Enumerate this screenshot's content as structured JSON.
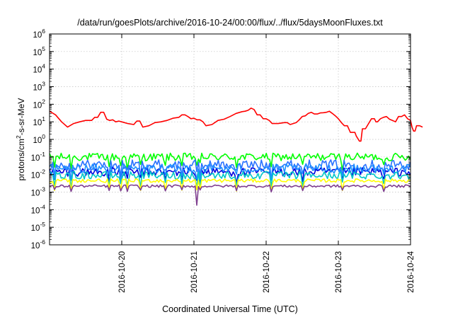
{
  "chart_data": {
    "type": "line",
    "title": "/data/run/goesPlots/archive/2016-10-24/00:00/flux/../flux/5daysMoonFluxes.txt",
    "xlabel": "Coordinated Universal Time (UTC)",
    "ylabel": "protons/cm²-s-sr-MeV",
    "ylabel_parts": {
      "pre": "protons/cm",
      "sup": "2",
      "post": "-s-sr-MeV"
    },
    "yscale": "log",
    "ylim": [
      1e-06,
      1000000
    ],
    "y_tick_exponents": [
      -6,
      -5,
      -4,
      -3,
      -2,
      -1,
      0,
      1,
      2,
      3,
      4,
      5,
      6
    ],
    "x_range": [
      "2016-10-19T00:00",
      "2016-10-24T00:00"
    ],
    "x_ticks": [
      "2016-10-20",
      "2016-10-21",
      "2016-10-22",
      "2016-10-23",
      "2016-10-24"
    ],
    "grid": true,
    "series": [
      {
        "color": "#ff0000",
        "values": [
          [
            0,
            40
          ],
          [
            4,
            25
          ],
          [
            8,
            10
          ],
          [
            12,
            5
          ],
          [
            16,
            8
          ],
          [
            20,
            10
          ],
          [
            24,
            12
          ],
          [
            28,
            12
          ],
          [
            30,
            18
          ],
          [
            32,
            18
          ],
          [
            34,
            35
          ],
          [
            36,
            35
          ],
          [
            38,
            14
          ],
          [
            40,
            12
          ],
          [
            42,
            13
          ],
          [
            44,
            10
          ],
          [
            46,
            11
          ],
          [
            48,
            10
          ],
          [
            52,
            8
          ],
          [
            56,
            7
          ],
          [
            58,
            11
          ],
          [
            60,
            11
          ],
          [
            62,
            5
          ],
          [
            66,
            6
          ],
          [
            70,
            9
          ],
          [
            74,
            10
          ],
          [
            78,
            12
          ],
          [
            82,
            16
          ],
          [
            86,
            18
          ],
          [
            88,
            25
          ],
          [
            90,
            25
          ],
          [
            92,
            20
          ],
          [
            94,
            15
          ],
          [
            96,
            16
          ],
          [
            98,
            13
          ],
          [
            100,
            13
          ],
          [
            102,
            10
          ],
          [
            104,
            6
          ],
          [
            108,
            7
          ],
          [
            112,
            12
          ],
          [
            116,
            14
          ],
          [
            120,
            20
          ],
          [
            124,
            30
          ],
          [
            128,
            38
          ],
          [
            130,
            40
          ],
          [
            132,
            45
          ],
          [
            134,
            60
          ],
          [
            136,
            50
          ],
          [
            138,
            25
          ],
          [
            140,
            25
          ],
          [
            142,
            15
          ],
          [
            144,
            15
          ],
          [
            146,
            12
          ],
          [
            148,
            8
          ],
          [
            152,
            8
          ],
          [
            156,
            9
          ],
          [
            158,
            9
          ],
          [
            160,
            7
          ],
          [
            164,
            9
          ],
          [
            166,
            13
          ],
          [
            168,
            20
          ],
          [
            170,
            22
          ],
          [
            172,
            30
          ],
          [
            174,
            35
          ],
          [
            176,
            28
          ],
          [
            178,
            28
          ],
          [
            180,
            32
          ],
          [
            182,
            33
          ],
          [
            184,
            35
          ],
          [
            186,
            40
          ],
          [
            188,
            30
          ],
          [
            190,
            22
          ],
          [
            192,
            15
          ],
          [
            194,
            9
          ],
          [
            196,
            6
          ],
          [
            198,
            6
          ],
          [
            200,
            2.5
          ],
          [
            203,
            2.5
          ],
          [
            204,
            1.5
          ],
          [
            206,
            0.8
          ],
          [
            207,
            0.8
          ],
          [
            208,
            4
          ],
          [
            210,
            4
          ],
          [
            214,
            15
          ],
          [
            216,
            15
          ],
          [
            217,
            10
          ],
          [
            218,
            10
          ],
          [
            220,
            15
          ],
          [
            222,
            18
          ],
          [
            224,
            20
          ],
          [
            226,
            14
          ],
          [
            228,
            12
          ],
          [
            230,
            10
          ],
          [
            232,
            20
          ],
          [
            234,
            20
          ],
          [
            236,
            25
          ],
          [
            238,
            15
          ],
          [
            240,
            12
          ],
          [
            241,
            5
          ],
          [
            242,
            3
          ],
          [
            243,
            3
          ],
          [
            244,
            6
          ],
          [
            246,
            6
          ],
          [
            248,
            5
          ]
        ]
      },
      {
        "color": "#00ff00",
        "values": []
      },
      {
        "color": "#2a72ff",
        "values": []
      },
      {
        "color": "#0000dd",
        "values": []
      },
      {
        "color": "#1e8fff",
        "values": []
      },
      {
        "color": "#00c8c8",
        "values": []
      },
      {
        "color": "#ffff00",
        "values": []
      },
      {
        "color": "#7f3f8f",
        "values": []
      }
    ]
  }
}
